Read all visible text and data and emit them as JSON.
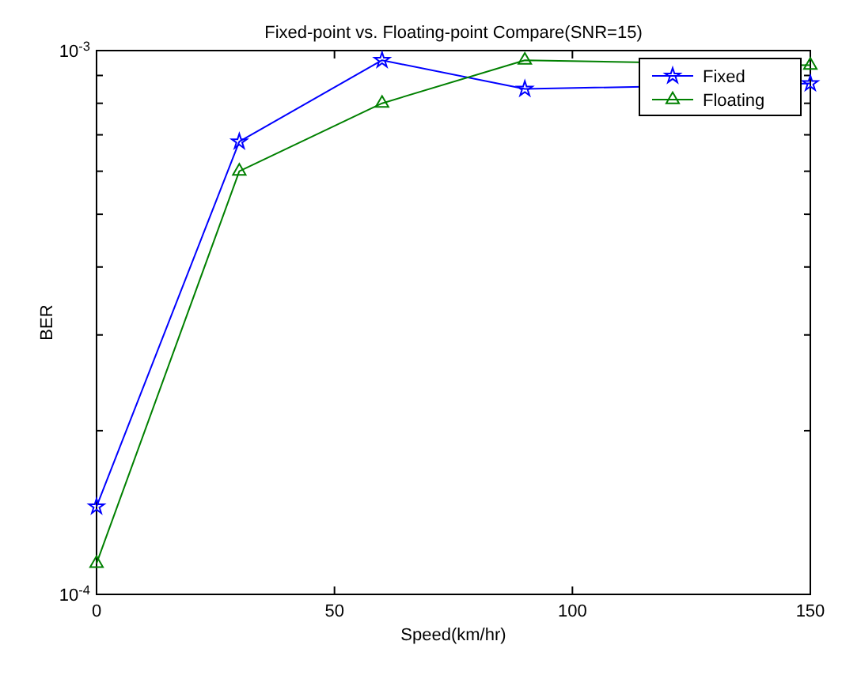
{
  "chart_data": {
    "type": "line",
    "title": "Fixed-point vs. Floating-point Compare(SNR=15)",
    "xlabel": "Speed(km/hr)",
    "ylabel": "BER",
    "x": [
      0,
      30,
      60,
      90,
      120,
      150
    ],
    "series": [
      {
        "name": "Fixed",
        "color": "#0000ff",
        "marker": "star",
        "values": [
          0.000145,
          0.00068,
          0.00096,
          0.00085,
          null,
          0.00087
        ]
      },
      {
        "name": "Floating",
        "color": "#008000",
        "marker": "triangle",
        "values": [
          0.000114,
          0.0006,
          0.0008,
          0.00096,
          null,
          0.00094
        ]
      }
    ],
    "log": "y",
    "xlim": [
      0,
      150
    ],
    "xticks": [
      0,
      50,
      100,
      150
    ],
    "ylim": [
      0.0001,
      0.001
    ],
    "yticks": [
      {
        "value": 0.0001,
        "label": "10$^{-4}$"
      },
      {
        "value": 0.0002,
        "label": null
      },
      {
        "value": 0.0003,
        "label": null
      },
      {
        "value": 0.0004,
        "label": null
      },
      {
        "value": 0.0005,
        "label": null
      },
      {
        "value": 0.0006,
        "label": null
      },
      {
        "value": 0.0007,
        "label": null
      },
      {
        "value": 0.0008,
        "label": null
      },
      {
        "value": 0.0009,
        "label": null
      },
      {
        "value": 0.001,
        "label": "10$^{-3}$"
      }
    ],
    "grid": false,
    "legend": "top right",
    "line_style": "solid"
  }
}
